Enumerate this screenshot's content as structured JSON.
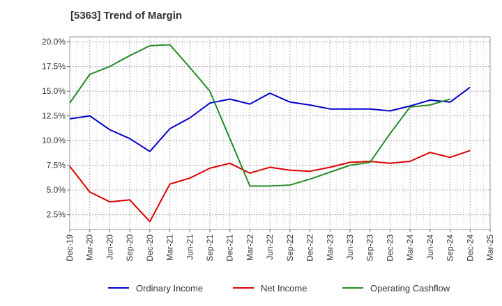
{
  "chart_data": {
    "type": "line",
    "title": "[5363]  Trend of Margin",
    "xlabel": "",
    "ylabel": "",
    "ylim": [
      1.0,
      20.5
    ],
    "yticks": [
      2.5,
      5.0,
      7.5,
      10.0,
      12.5,
      15.0,
      17.5,
      20.0
    ],
    "ytick_labels": [
      "2.5%",
      "5.0%",
      "7.5%",
      "10.0%",
      "12.5%",
      "15.0%",
      "17.5%",
      "20.0%"
    ],
    "categories": [
      "Dec-19",
      "Mar-20",
      "Jun-20",
      "Sep-20",
      "Dec-20",
      "Mar-21",
      "Jun-21",
      "Sep-21",
      "Dec-21",
      "Mar-22",
      "Jun-22",
      "Sep-22",
      "Dec-22",
      "Mar-23",
      "Jun-23",
      "Sep-23",
      "Dec-23",
      "Mar-24",
      "Jun-24",
      "Sep-24",
      "Dec-24",
      "Mar-25"
    ],
    "grid": true,
    "legend_position": "bottom",
    "series": [
      {
        "name": "Ordinary Income",
        "color": "#0000cc",
        "values": [
          12.2,
          12.5,
          11.1,
          10.2,
          8.9,
          11.2,
          12.3,
          13.8,
          14.2,
          13.7,
          14.8,
          13.9,
          13.6,
          13.2,
          13.2,
          13.2,
          13.0,
          13.5,
          14.1,
          13.9,
          15.4,
          null
        ]
      },
      {
        "name": "Net Income",
        "color": "#dd0000",
        "values": [
          7.4,
          4.8,
          3.8,
          4.0,
          1.8,
          5.6,
          6.2,
          7.2,
          7.7,
          6.7,
          7.3,
          7.0,
          6.9,
          7.3,
          7.8,
          7.9,
          7.7,
          7.9,
          8.8,
          8.3,
          9.0,
          null
        ]
      },
      {
        "name": "Operating Cashflow",
        "color": "#228b22",
        "values": [
          13.8,
          16.7,
          17.5,
          18.6,
          19.6,
          19.7,
          17.4,
          15.0,
          10.2,
          5.4,
          5.4,
          5.5,
          6.1,
          6.8,
          7.5,
          7.8,
          10.7,
          13.4,
          13.6,
          14.2,
          null,
          null
        ]
      }
    ]
  }
}
